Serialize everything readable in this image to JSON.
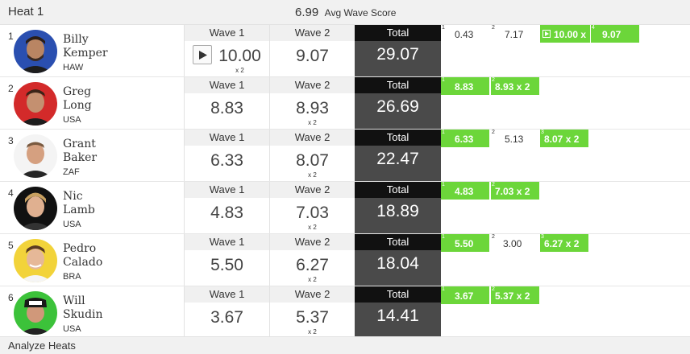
{
  "header": {
    "heat_title": "Heat 1",
    "avg_score": "6.99",
    "avg_label": "Avg Wave Score"
  },
  "colors": {
    "accent_green": "#6cd63a",
    "total_dark": "#111111",
    "total_bg": "#4a4a4a"
  },
  "rows": [
    {
      "rank": "1",
      "first": "Billy",
      "last": "Kemper",
      "country": "HAW",
      "wave1_label": "Wave 1",
      "wave1": "10.00",
      "wave1_mult": "x 2",
      "wave2_label": "Wave 2",
      "wave2": "9.07",
      "wave2_mult": "",
      "total_label": "Total",
      "total": "29.07",
      "waves": [
        {
          "idx": "1",
          "val": "0.43",
          "green": false
        },
        {
          "idx": "2",
          "val": "7.17",
          "green": false
        },
        {
          "idx": "",
          "val": "10.00 x",
          "green": true,
          "play": true
        },
        {
          "idx": "4",
          "val": "9.07",
          "green": true
        }
      ]
    },
    {
      "rank": "2",
      "first": "Greg",
      "last": "Long",
      "country": "USA",
      "wave1_label": "Wave 1",
      "wave1": "8.83",
      "wave1_mult": "",
      "wave2_label": "Wave 2",
      "wave2": "8.93",
      "wave2_mult": "x 2",
      "total_label": "Total",
      "total": "26.69",
      "waves": [
        {
          "idx": "1",
          "val": "8.83",
          "green": true
        },
        {
          "idx": "2",
          "val": "8.93 x 2",
          "green": true
        }
      ]
    },
    {
      "rank": "3",
      "first": "Grant",
      "last": "Baker",
      "country": "ZAF",
      "wave1_label": "Wave 1",
      "wave1": "6.33",
      "wave1_mult": "",
      "wave2_label": "Wave 2",
      "wave2": "8.07",
      "wave2_mult": "x 2",
      "total_label": "Total",
      "total": "22.47",
      "waves": [
        {
          "idx": "1",
          "val": "6.33",
          "green": true
        },
        {
          "idx": "2",
          "val": "5.13",
          "green": false
        },
        {
          "idx": "3",
          "val": "8.07 x 2",
          "green": true
        }
      ]
    },
    {
      "rank": "4",
      "first": "Nic",
      "last": "Lamb",
      "country": "USA",
      "wave1_label": "Wave 1",
      "wave1": "4.83",
      "wave1_mult": "",
      "wave2_label": "Wave 2",
      "wave2": "7.03",
      "wave2_mult": "x 2",
      "total_label": "Total",
      "total": "18.89",
      "waves": [
        {
          "idx": "1",
          "val": "4.83",
          "green": true
        },
        {
          "idx": "2",
          "val": "7.03 x 2",
          "green": true
        }
      ]
    },
    {
      "rank": "5",
      "first": "Pedro",
      "last": "Calado",
      "country": "BRA",
      "wave1_label": "Wave 1",
      "wave1": "5.50",
      "wave1_mult": "",
      "wave2_label": "Wave 2",
      "wave2": "6.27",
      "wave2_mult": "x 2",
      "total_label": "Total",
      "total": "18.04",
      "waves": [
        {
          "idx": "1",
          "val": "5.50",
          "green": true
        },
        {
          "idx": "2",
          "val": "3.00",
          "green": false
        },
        {
          "idx": "3",
          "val": "6.27 x 2",
          "green": true
        }
      ]
    },
    {
      "rank": "6",
      "first": "Will",
      "last": "Skudin",
      "country": "USA",
      "wave1_label": "Wave 1",
      "wave1": "3.67",
      "wave1_mult": "",
      "wave2_label": "Wave 2",
      "wave2": "5.37",
      "wave2_mult": "x 2",
      "total_label": "Total",
      "total": "14.41",
      "waves": [
        {
          "idx": "1",
          "val": "3.67",
          "green": true
        },
        {
          "idx": "2",
          "val": "5.37 x 2",
          "green": true
        }
      ]
    }
  ],
  "footer": {
    "label": "Analyze Heats"
  }
}
